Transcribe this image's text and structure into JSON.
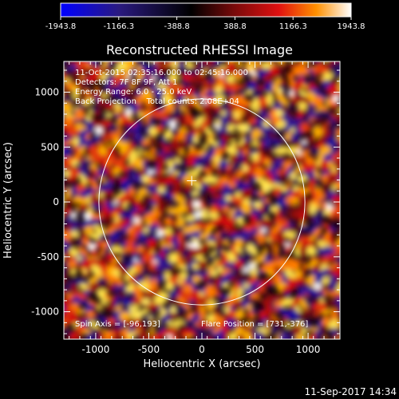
{
  "chart_data": {
    "type": "heatmap",
    "title": "Reconstructed RHESSI Image",
    "xlabel": "Heliocentric X (arcsec)",
    "ylabel": "Heliocentric Y (arcsec)",
    "xlim": [
      -1300,
      1300
    ],
    "ylim": [
      -1250,
      1280
    ],
    "xticks": [
      -1000,
      -500,
      0,
      500,
      1000
    ],
    "yticks": [
      -1000,
      -500,
      0,
      500,
      1000
    ],
    "colorbar": {
      "min": -1943.8,
      "max": 1943.8,
      "tick_labels": [
        "-1943.8",
        "-1166.3",
        "-388.8",
        "388.8",
        "1166.3",
        "1943.8"
      ]
    },
    "solar_limb_radius_arcsec": 970,
    "map_center_arcsec": [
      -96,
      193
    ],
    "annotations": [
      "11-Oct-2015 02:35:16.000 to 02:45:16.000",
      "Detectors: 7F 8F 9F, Att 1",
      "Energy Range: 6.0 - 25.0 keV",
      "Back Projection    Total counts: 2.08E+04",
      "Spin Axis = [-96,193]",
      "Flare Position = [731,-376]"
    ]
  },
  "timestamp": "11-Sep-2017 14:34",
  "colors": {
    "background": "#000000",
    "foreground": "#ffffff",
    "colormap": [
      "#0000ff",
      "#2a1a80",
      "#000000",
      "#6a0a0a",
      "#e01010",
      "#ff8a00",
      "#ffff40",
      "#ffffff"
    ]
  }
}
